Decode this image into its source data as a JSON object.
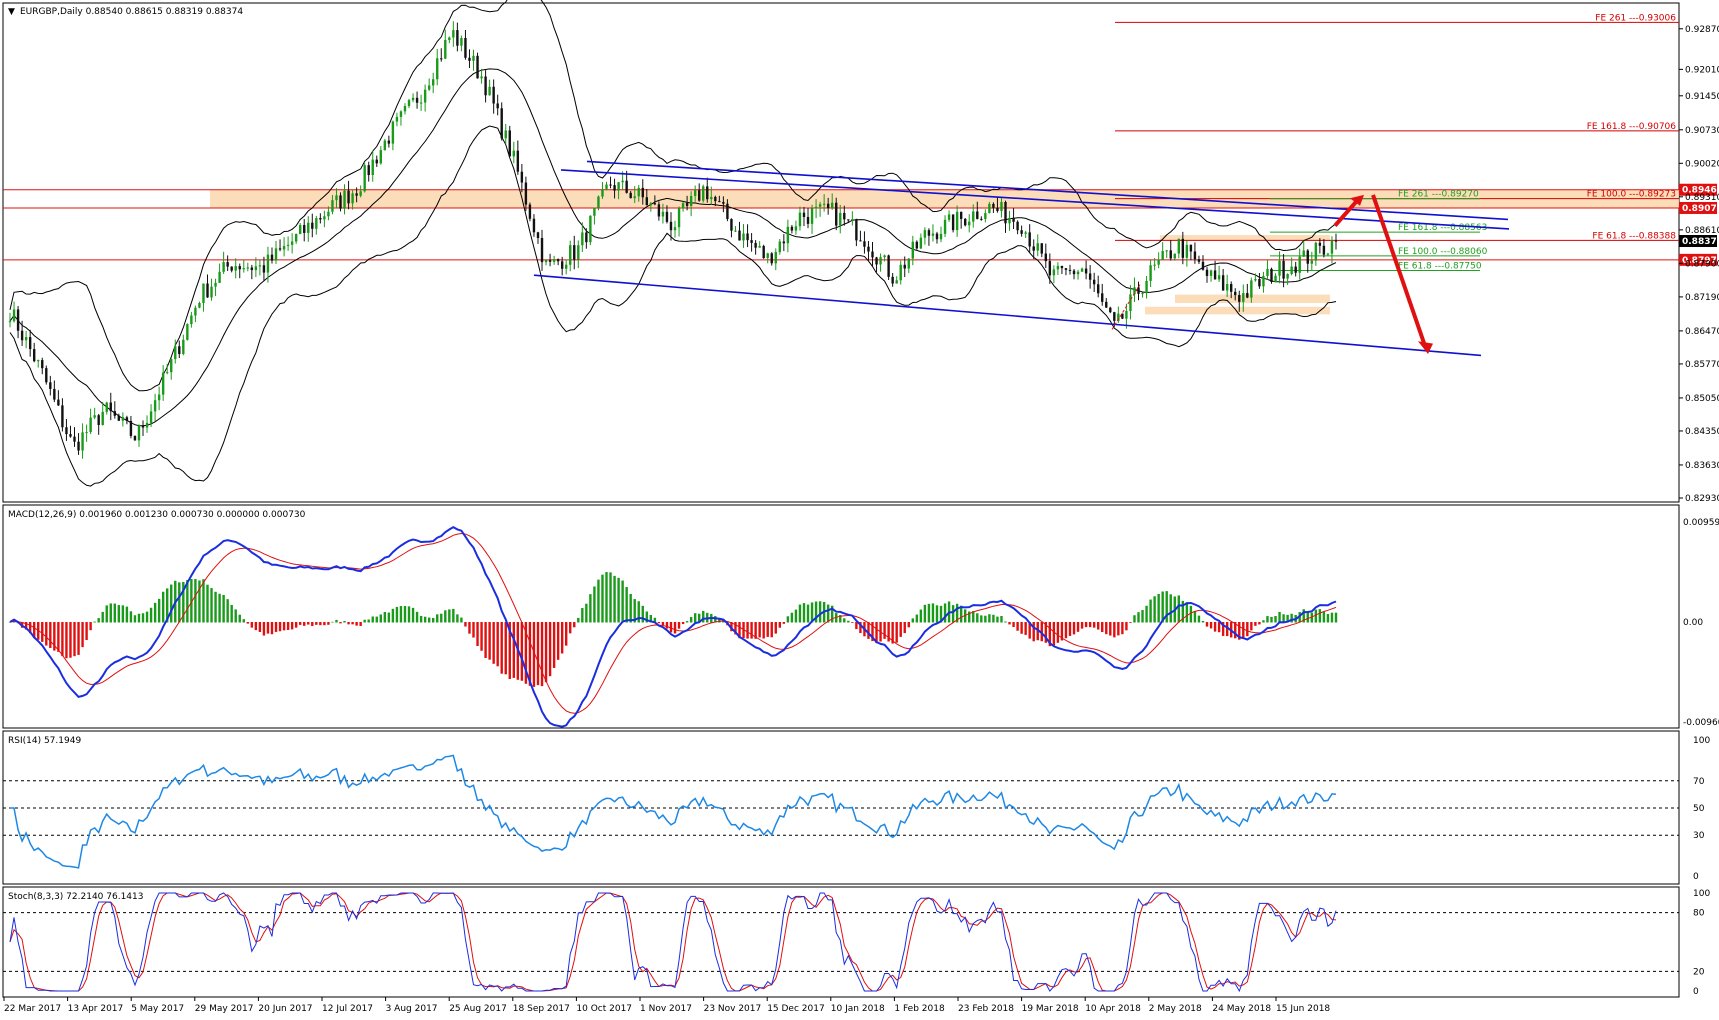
{
  "symbol_header": "EURGBP,Daily  0.88540 0.88615 0.88319 0.88374",
  "indicators": {
    "macd": "MACD(12,26,9) 0.001960 0.001230 0.000730 0.000000 0.000730",
    "rsi": "RSI(14) 57.1949",
    "stoch": "Stoch(8,3,3) 72.2140 76.1413"
  },
  "price_axis": {
    "min": 0.8293,
    "max": 0.9331,
    "ticks": [
      "0.92870",
      "0.92010",
      "0.91450",
      "0.90730",
      "0.90020",
      "0.89310",
      "0.88610",
      "0.87900",
      "0.87190",
      "0.86470",
      "0.85770",
      "0.85050",
      "0.84350",
      "0.83630",
      "0.82930"
    ],
    "tick_values": [
      0.9287,
      0.9201,
      0.9145,
      0.9073,
      0.9002,
      0.8931,
      0.8861,
      0.879,
      0.8719,
      0.8647,
      0.8577,
      0.8505,
      0.8435,
      0.8363,
      0.8293
    ],
    "current_price": "0.88374",
    "current_value": 0.88374
  },
  "macd_axis": {
    "ticks": [
      "0.009595",
      "0.00",
      "-0.009608"
    ],
    "values": [
      0.009595,
      0,
      -0.009608
    ]
  },
  "rsi_axis": {
    "ticks": [
      "100",
      "70",
      "50",
      "30",
      "0"
    ],
    "values": [
      100,
      70,
      50,
      30,
      0
    ]
  },
  "stoch_axis": {
    "ticks": [
      "100",
      "80",
      "20",
      "0"
    ],
    "values": [
      100,
      80,
      20,
      0
    ]
  },
  "date_labels": [
    "22 Mar 2017",
    "13 Apr 2017",
    "5 May 2017",
    "29 May 2017",
    "20 Jun 2017",
    "12 Jul 2017",
    "3 Aug 2017",
    "25 Aug 2017",
    "18 Sep 2017",
    "10 Oct 2017",
    "1 Nov 2017",
    "23 Nov 2017",
    "15 Dec 2017",
    "10 Jan 2018",
    "1 Feb 2018",
    "23 Feb 2018",
    "19 Mar 2018",
    "10 Apr 2018",
    "2 May 2018",
    "24 May 2018",
    "15 Jun 2018"
  ],
  "horizontal_levels": [
    {
      "value": 0.8946,
      "label": "0.89460",
      "color": "#e01010"
    },
    {
      "value": 0.89074,
      "label": "0.89074",
      "color": "#e01010"
    },
    {
      "value": 0.87975,
      "label": "0.87975",
      "color": "#e01010"
    }
  ],
  "fe_levels": [
    {
      "value": 0.93006,
      "label": "FE 261 ---0.93006",
      "color": "#d40000"
    },
    {
      "value": 0.90706,
      "label": "FE 161.8 ---0.90706",
      "color": "#d40000"
    },
    {
      "value": 0.89273,
      "label": "FE 100.0 ---0.89273",
      "color": "#d40000"
    },
    {
      "value": 0.88388,
      "label": "FE 61.8 ---0.88388",
      "color": "#d40000"
    }
  ],
  "fg_levels": [
    {
      "value": 0.8927,
      "label": "FE 261 ---0.89270",
      "color": "#22a022"
    },
    {
      "value": 0.88563,
      "label": "FE 161.8 ---0.88563",
      "color": "#22a022"
    },
    {
      "value": 0.8806,
      "label": "FE 100.0 ---0.88060",
      "color": "#22a022"
    },
    {
      "value": 0.8775,
      "label": "FE 61.8 ---0.87750",
      "color": "#22a022"
    }
  ],
  "colors": {
    "bull_candle": "#1a9a1a",
    "bear_candle": "#111111",
    "channel": "#1010d0",
    "macd_line": "#1a2ee0",
    "signal_line": "#e01010",
    "hist_pos": "#1a9a1a",
    "hist_neg": "#e01010",
    "rsi_line": "#1e88e5",
    "stoch_main": "#1a2ee0",
    "stoch_signal": "#e01010",
    "zone": "#fbd7ae"
  },
  "chart_data": {
    "type": "candlestick",
    "title": "EURGBP,Daily  0.88540 0.88615 0.88319 0.88374",
    "xlabel": "",
    "ylabel": "",
    "ylim": [
      0.8293,
      0.9331
    ],
    "x_start": "22 Mar 2017",
    "x_end": "15 Jun 2018",
    "close_path": [
      {
        "d": "22 Mar 2017",
        "c": 0.869
      },
      {
        "d": "2 Apr 2017",
        "c": 0.856
      },
      {
        "d": "13 Apr 2017",
        "c": 0.84
      },
      {
        "d": "24 Apr 2017",
        "c": 0.848
      },
      {
        "d": "5 May 2017",
        "c": 0.842
      },
      {
        "d": "17 May 2017",
        "c": 0.856
      },
      {
        "d": "29 May 2017",
        "c": 0.872
      },
      {
        "d": "9 Jun 2017",
        "c": 0.879
      },
      {
        "d": "20 Jun 2017",
        "c": 0.878
      },
      {
        "d": "1 Jul 2017",
        "c": 0.884
      },
      {
        "d": "12 Jul 2017",
        "c": 0.89
      },
      {
        "d": "23 Jul 2017",
        "c": 0.895
      },
      {
        "d": "3 Aug 2017",
        "c": 0.906
      },
      {
        "d": "14 Aug 2017",
        "c": 0.915
      },
      {
        "d": "25 Aug 2017",
        "c": 0.928
      },
      {
        "d": "5 Sep 2017",
        "c": 0.918
      },
      {
        "d": "12 Sep 2017",
        "c": 0.9
      },
      {
        "d": "18 Sep 2017",
        "c": 0.878
      },
      {
        "d": "29 Sep 2017",
        "c": 0.882
      },
      {
        "d": "10 Oct 2017",
        "c": 0.896
      },
      {
        "d": "21 Oct 2017",
        "c": 0.893
      },
      {
        "d": "1 Nov 2017",
        "c": 0.887
      },
      {
        "d": "12 Nov 2017",
        "c": 0.895
      },
      {
        "d": "23 Nov 2017",
        "c": 0.886
      },
      {
        "d": "4 Dec 2017",
        "c": 0.88
      },
      {
        "d": "15 Dec 2017",
        "c": 0.889
      },
      {
        "d": "27 Dec 2017",
        "c": 0.89
      },
      {
        "d": "10 Jan 2018",
        "c": 0.885
      },
      {
        "d": "21 Jan 2018",
        "c": 0.876
      },
      {
        "d": "1 Feb 2018",
        "c": 0.885
      },
      {
        "d": "12 Feb 2018",
        "c": 0.888
      },
      {
        "d": "23 Feb 2018",
        "c": 0.891
      },
      {
        "d": "8 Mar 2018",
        "c": 0.888
      },
      {
        "d": "19 Mar 2018",
        "c": 0.876
      },
      {
        "d": "30 Mar 2018",
        "c": 0.878
      },
      {
        "d": "10 Apr 2018",
        "c": 0.865
      },
      {
        "d": "21 Apr 2018",
        "c": 0.876
      },
      {
        "d": "2 May 2018",
        "c": 0.883
      },
      {
        "d": "13 May 2018",
        "c": 0.876
      },
      {
        "d": "24 May 2018",
        "c": 0.872
      },
      {
        "d": "4 Jun 2018",
        "c": 0.877
      },
      {
        "d": "15 Jun 2018",
        "c": 0.88
      },
      {
        "d": "last",
        "c": 0.88374
      }
    ],
    "annotations": [
      "Descending channel from Oct 2017 to Jun 2018",
      "Projected move up to ~0.8930 then down to ~0.8600"
    ]
  }
}
